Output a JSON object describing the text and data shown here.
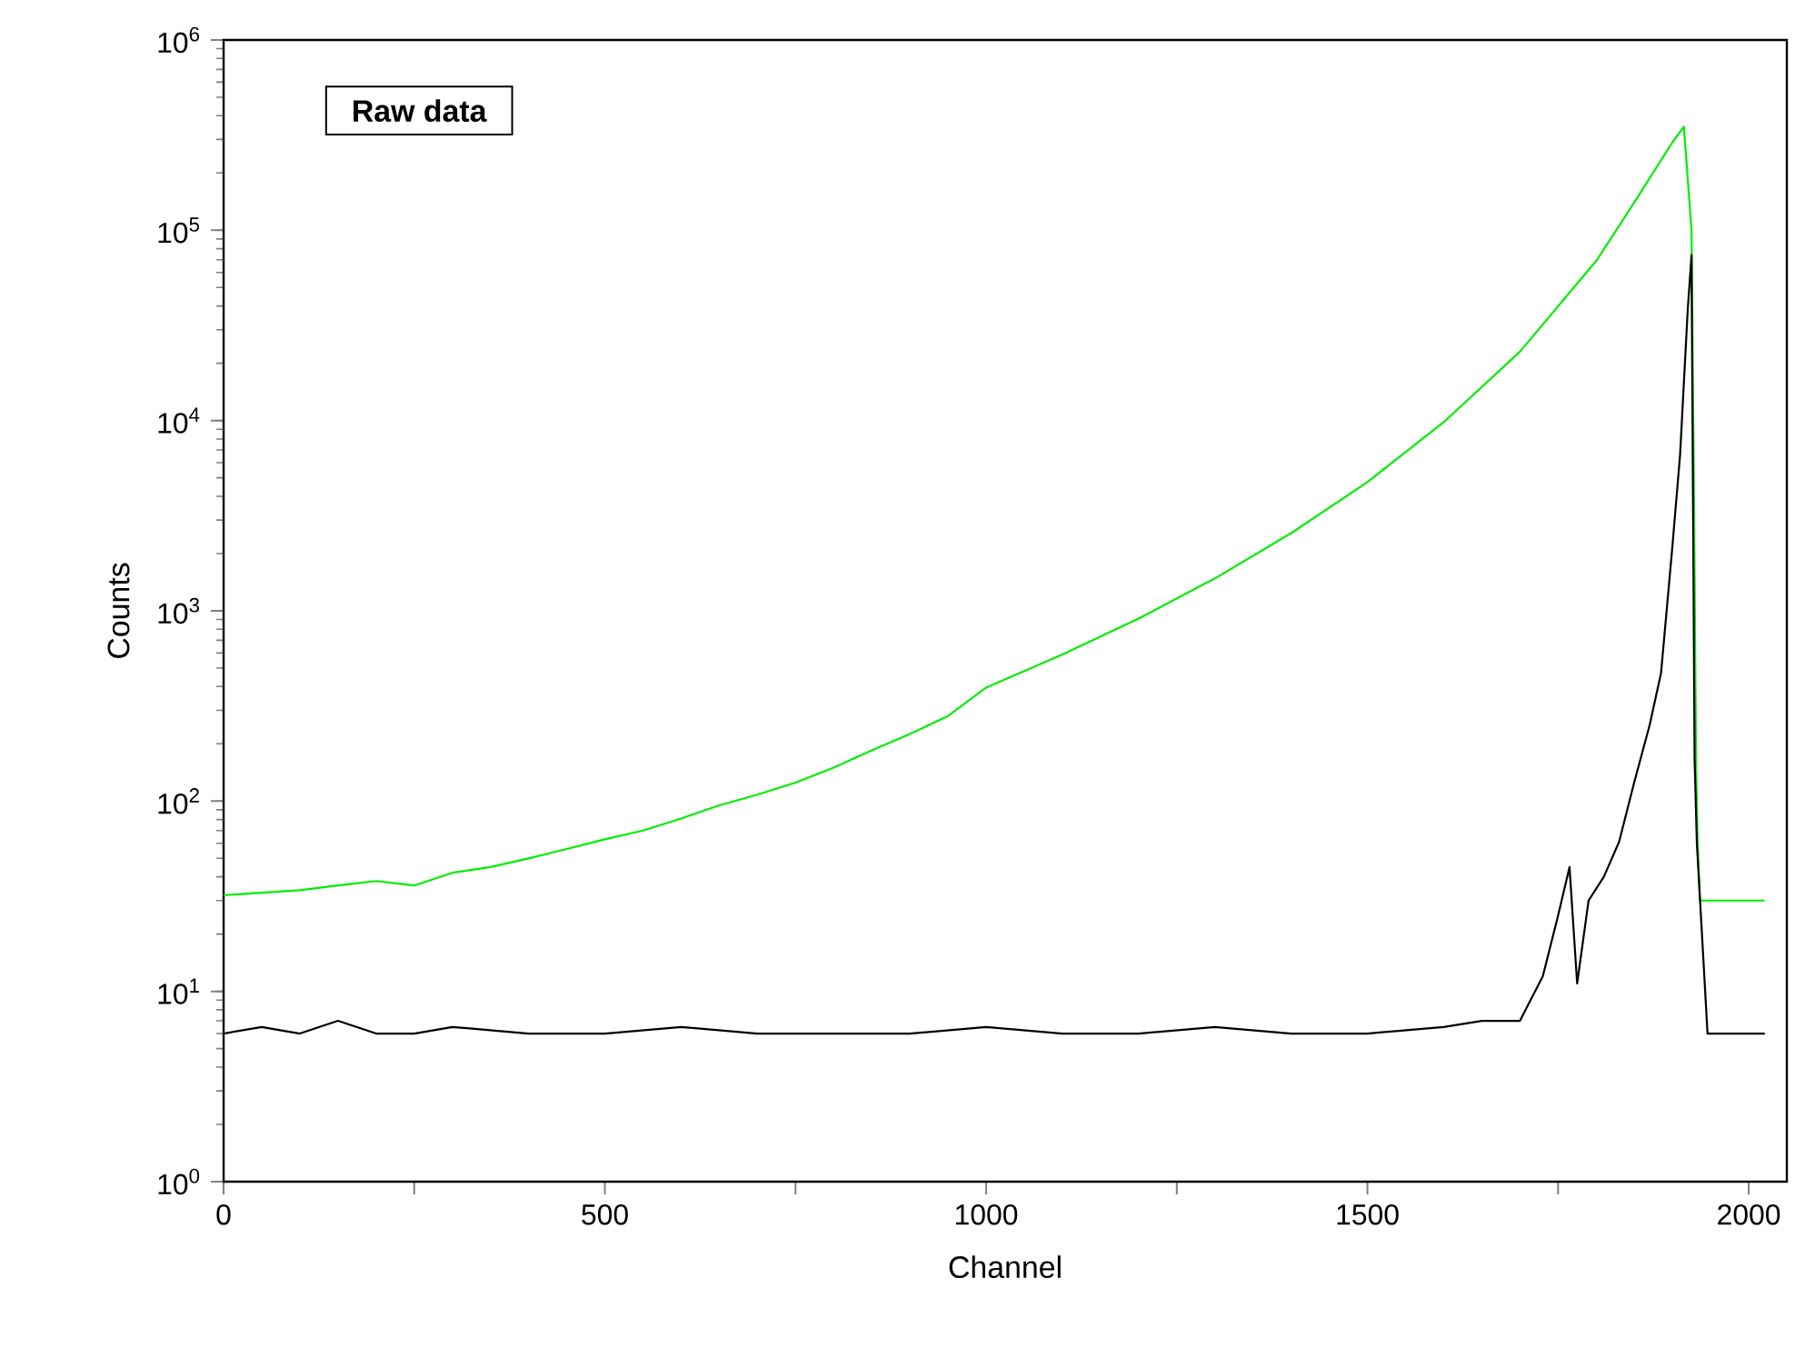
{
  "chart_data": {
    "type": "line",
    "xlabel": "Channel",
    "ylabel": "Counts",
    "log": "y",
    "annotations": [
      "Raw data"
    ],
    "xlim": [
      0,
      2050
    ],
    "ylim": [
      1,
      1000000
    ],
    "xticks": [
      0,
      {
        "value": 250,
        "label": null
      },
      500,
      {
        "value": 750,
        "label": null
      },
      1000,
      {
        "value": 1250,
        "label": null
      },
      1500,
      {
        "value": 1750,
        "label": null
      },
      2000
    ],
    "yticks": [
      {
        "value": 1,
        "label": "10$^{0}$"
      },
      {
        "value": 10,
        "label": "10$^{1}$"
      },
      {
        "value": 100,
        "label": "10$^{2}$"
      },
      {
        "value": 1000,
        "label": "10$^{3}$"
      },
      {
        "value": 10000,
        "label": "10$^{4}$"
      },
      {
        "value": 100000,
        "label": "10$^{5}$"
      },
      {
        "value": 1000000,
        "label": "10$^{6}$"
      }
    ],
    "marker": "none",
    "line_style": "solid",
    "series": [
      {
        "color": "#00ee00",
        "x": [
          0,
          50,
          100,
          150,
          200,
          250,
          300,
          350,
          400,
          450,
          500,
          550,
          600,
          650,
          700,
          750,
          800,
          850,
          900,
          950,
          1000,
          1100,
          1200,
          1300,
          1400,
          1500,
          1600,
          1700,
          1800,
          1850,
          1900,
          1915,
          1925,
          1928,
          1931,
          1933,
          1936,
          1980,
          2021
        ],
        "values": [
          32,
          33,
          34,
          36,
          38,
          36,
          42,
          45,
          50,
          56,
          63,
          70,
          81,
          95,
          108,
          125,
          150,
          185,
          225,
          280,
          395,
          590,
          910,
          1480,
          2560,
          4750,
          9800,
          23000,
          69000,
          140000,
          290000,
          350000,
          100000,
          5000,
          150,
          60,
          30,
          30,
          30
        ]
      },
      {
        "color": "#000000",
        "x": [
          0,
          50,
          100,
          150,
          200,
          250,
          300,
          400,
          500,
          600,
          700,
          800,
          900,
          1000,
          1100,
          1200,
          1300,
          1400,
          1500,
          1600,
          1650,
          1700,
          1730,
          1750,
          1765,
          1775,
          1790,
          1810,
          1830,
          1850,
          1870,
          1885,
          1900,
          1910,
          1920,
          1925,
          1929,
          1932,
          1946,
          1980,
          2021
        ],
        "values": [
          6,
          6.5,
          6,
          7,
          6,
          6,
          6.5,
          6,
          6,
          6.5,
          6,
          6,
          6,
          6.5,
          6,
          6,
          6.5,
          6,
          6,
          6.5,
          7,
          7,
          12,
          25,
          45,
          11,
          30,
          40,
          61,
          126,
          250,
          470,
          2200,
          6600,
          38000,
          74000,
          168,
          60,
          6,
          6,
          6
        ]
      }
    ]
  }
}
